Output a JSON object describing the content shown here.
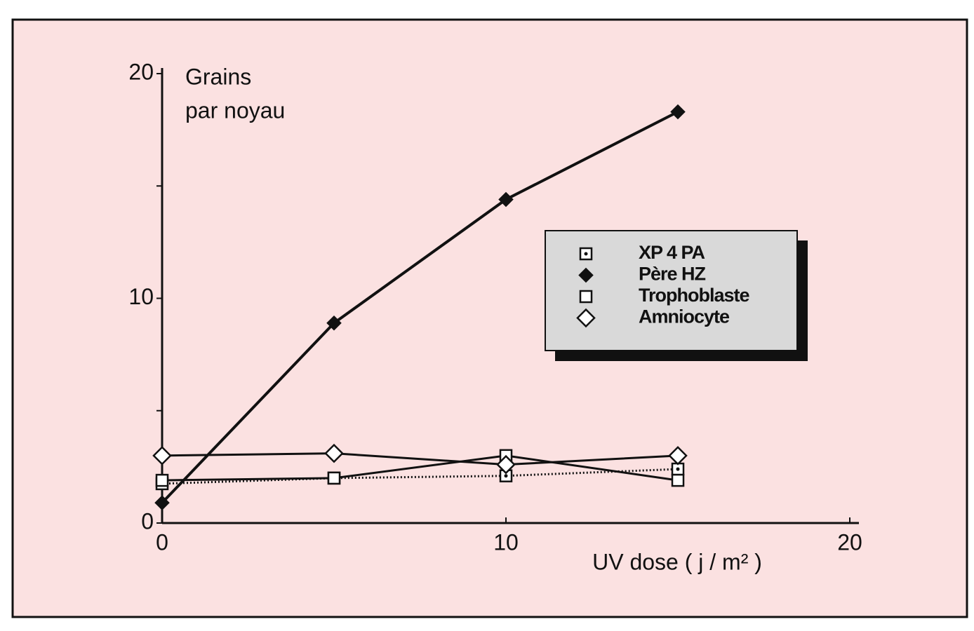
{
  "chart_data": {
    "type": "line",
    "y_label": [
      "Grains",
      "par noyau"
    ],
    "x_label": "UV dose ( j / m² )",
    "x": [
      0,
      5,
      10,
      15
    ],
    "series": [
      {
        "name": "XP 4 PA",
        "color": "#111111",
        "marker": "dotted-square",
        "line": "dotted",
        "values": [
          1.75,
          2.0,
          2.1,
          2.4
        ]
      },
      {
        "name": "Père HZ",
        "color": "#111111",
        "marker": "filled-diamond",
        "line": "solid",
        "values": [
          0.9,
          8.9,
          14.4,
          18.3
        ]
      },
      {
        "name": "Trophoblaste",
        "color": "#111111",
        "marker": "square",
        "line": "solid",
        "values": [
          1.9,
          2.0,
          3.0,
          1.9
        ]
      },
      {
        "name": "Amniocyte",
        "color": "#111111",
        "marker": "diamond",
        "line": "solid",
        "values": [
          3.0,
          3.1,
          2.6,
          3.0
        ]
      }
    ],
    "xlim": [
      0,
      20
    ],
    "xticks": [
      0,
      10,
      20
    ],
    "ylim": [
      0,
      20
    ],
    "yticks": [
      0,
      10,
      20
    ],
    "y_minor_ticks": [
      5,
      15
    ],
    "legend": "right"
  }
}
